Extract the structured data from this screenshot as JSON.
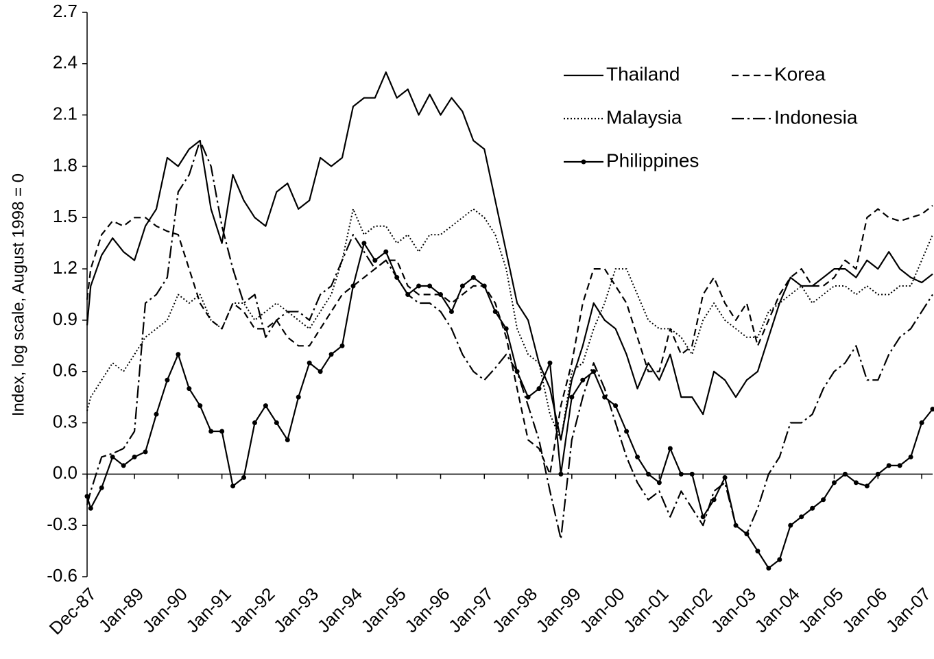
{
  "chart_data": {
    "type": "line",
    "y_label": "Index, log scale, August 1998 = 0",
    "x": [
      1987.917,
      1988,
      1988.25,
      1988.5,
      1988.75,
      1989,
      1989.25,
      1989.5,
      1989.75,
      1990,
      1990.25,
      1990.5,
      1990.75,
      1991,
      1991.25,
      1991.5,
      1991.75,
      1992,
      1992.25,
      1992.5,
      1992.75,
      1993,
      1993.25,
      1993.5,
      1993.75,
      1994,
      1994.25,
      1994.5,
      1994.75,
      1995,
      1995.25,
      1995.5,
      1995.75,
      1996,
      1996.25,
      1996.5,
      1996.75,
      1997,
      1997.25,
      1997.5,
      1997.75,
      1998,
      1998.25,
      1998.5,
      1998.75,
      1999,
      1999.25,
      1999.5,
      1999.75,
      2000,
      2000.25,
      2000.5,
      2000.75,
      2001,
      2001.25,
      2001.5,
      2001.75,
      2002,
      2002.25,
      2002.5,
      2002.75,
      2003,
      2003.25,
      2003.5,
      2003.75,
      2004,
      2004.25,
      2004.5,
      2004.75,
      2005,
      2005.25,
      2005.5,
      2005.75,
      2006,
      2006.25,
      2006.5,
      2006.75,
      2007,
      2007.25
    ],
    "xlim": [
      1987.917,
      2007.25
    ],
    "xticks": [
      {
        "value": 1987.917,
        "label": "Dec-87"
      },
      {
        "value": 1989,
        "label": "Jan-89"
      },
      {
        "value": 1990,
        "label": "Jan-90"
      },
      {
        "value": 1991,
        "label": "Jan-91"
      },
      {
        "value": 1992,
        "label": "Jan-92"
      },
      {
        "value": 1993,
        "label": "Jan-93"
      },
      {
        "value": 1994,
        "label": "Jan-94"
      },
      {
        "value": 1995,
        "label": "Jan-95"
      },
      {
        "value": 1996,
        "label": "Jan-96"
      },
      {
        "value": 1997,
        "label": "Jan-97"
      },
      {
        "value": 1998,
        "label": "Jan-98"
      },
      {
        "value": 1999,
        "label": "Jan-99"
      },
      {
        "value": 2000,
        "label": "Jan-00"
      },
      {
        "value": 2001,
        "label": "Jan-01"
      },
      {
        "value": 2002,
        "label": "Jan-02"
      },
      {
        "value": 2003,
        "label": "Jan-03"
      },
      {
        "value": 2004,
        "label": "Jan-04"
      },
      {
        "value": 2005,
        "label": "Jan-05"
      },
      {
        "value": 2006,
        "label": "Jan-06"
      },
      {
        "value": 2007,
        "label": "Jan-07"
      }
    ],
    "ylim": [
      -0.6,
      2.7
    ],
    "yticks": [
      {
        "value": -0.6,
        "label": "-0.6"
      },
      {
        "value": -0.3,
        "label": "-0.3"
      },
      {
        "value": 0,
        "label": "0.0"
      },
      {
        "value": 0.3,
        "label": "0.3"
      },
      {
        "value": 0.6,
        "label": "0.6"
      },
      {
        "value": 0.9,
        "label": "0.9"
      },
      {
        "value": 1.2,
        "label": "1.2"
      },
      {
        "value": 1.5,
        "label": "1.5"
      },
      {
        "value": 1.8,
        "label": "1.8"
      },
      {
        "value": 2.1,
        "label": "2.1"
      },
      {
        "value": 2.4,
        "label": "2.4"
      },
      {
        "value": 2.7,
        "label": "2.7"
      }
    ],
    "legend": "upper right",
    "series": [
      {
        "name": "Thailand",
        "color": "#000000",
        "dash": "solid",
        "values": [
          0.87,
          1.1,
          1.28,
          1.38,
          1.3,
          1.25,
          1.45,
          1.55,
          1.85,
          1.8,
          1.9,
          1.95,
          1.55,
          1.35,
          1.75,
          1.6,
          1.5,
          1.45,
          1.65,
          1.7,
          1.55,
          1.6,
          1.85,
          1.8,
          1.85,
          2.15,
          2.2,
          2.2,
          2.35,
          2.2,
          2.25,
          2.1,
          2.22,
          2.1,
          2.2,
          2.12,
          1.95,
          1.9,
          1.6,
          1.3,
          1.0,
          0.9,
          0.65,
          0.5,
          0.2,
          0.55,
          0.75,
          1.0,
          0.9,
          0.85,
          0.7,
          0.5,
          0.65,
          0.55,
          0.7,
          0.45,
          0.45,
          0.35,
          0.6,
          0.55,
          0.45,
          0.55,
          0.6,
          0.8,
          1.0,
          1.15,
          1.1,
          1.1,
          1.15,
          1.2,
          1.2,
          1.15,
          1.25,
          1.2,
          1.3,
          1.2,
          1.15,
          1.12,
          1.17
        ]
      },
      {
        "name": "Korea",
        "color": "#000000",
        "dash": "dashed",
        "values": [
          1.02,
          1.2,
          1.4,
          1.48,
          1.45,
          1.5,
          1.5,
          1.45,
          1.42,
          1.4,
          1.2,
          1.0,
          0.9,
          0.85,
          1.0,
          0.95,
          0.85,
          0.85,
          0.9,
          0.8,
          0.75,
          0.75,
          0.85,
          0.95,
          1.05,
          1.1,
          1.15,
          1.2,
          1.25,
          1.25,
          1.1,
          1.05,
          1.05,
          1.05,
          1.0,
          1.05,
          1.1,
          1.1,
          1.0,
          0.8,
          0.5,
          0.2,
          0.15,
          0.0,
          0.4,
          0.65,
          1.0,
          1.2,
          1.2,
          1.1,
          1.0,
          0.8,
          0.6,
          0.6,
          0.85,
          0.7,
          0.75,
          1.05,
          1.15,
          1.0,
          0.9,
          1.0,
          0.75,
          0.9,
          1.05,
          1.15,
          1.2,
          1.1,
          1.1,
          1.15,
          1.25,
          1.2,
          1.5,
          1.55,
          1.5,
          1.48,
          1.5,
          1.52,
          1.57
        ]
      },
      {
        "name": "Malaysia",
        "color": "#000000",
        "dash": "dotted",
        "values": [
          0.37,
          0.45,
          0.55,
          0.65,
          0.6,
          0.7,
          0.8,
          0.85,
          0.9,
          1.05,
          1.0,
          1.05,
          0.9,
          0.85,
          1.0,
          1.0,
          0.9,
          0.95,
          1.0,
          0.95,
          0.9,
          0.85,
          0.95,
          1.05,
          1.25,
          1.55,
          1.4,
          1.45,
          1.45,
          1.35,
          1.4,
          1.3,
          1.4,
          1.4,
          1.45,
          1.5,
          1.55,
          1.5,
          1.4,
          1.2,
          0.85,
          0.7,
          0.65,
          0.35,
          0.2,
          0.6,
          0.65,
          0.85,
          1.0,
          1.2,
          1.2,
          1.05,
          0.9,
          0.85,
          0.85,
          0.8,
          0.7,
          0.9,
          1.0,
          0.9,
          0.85,
          0.8,
          0.8,
          0.95,
          1.0,
          1.05,
          1.1,
          1.0,
          1.05,
          1.1,
          1.1,
          1.05,
          1.1,
          1.05,
          1.05,
          1.1,
          1.1,
          1.25,
          1.4
        ]
      },
      {
        "name": "Indonesia",
        "color": "#000000",
        "dash": "dashdot",
        "values": [
          -0.18,
          -0.1,
          0.1,
          0.12,
          0.15,
          0.25,
          1.0,
          1.05,
          1.15,
          1.65,
          1.75,
          1.95,
          1.8,
          1.45,
          1.2,
          1.0,
          1.05,
          0.8,
          0.9,
          0.95,
          0.95,
          0.9,
          1.05,
          1.1,
          1.25,
          1.4,
          1.3,
          1.2,
          1.25,
          1.15,
          1.05,
          1.0,
          1.0,
          0.95,
          0.85,
          0.7,
          0.6,
          0.55,
          0.62,
          0.7,
          0.6,
          0.4,
          0.2,
          -0.1,
          -0.38,
          0.2,
          0.45,
          0.65,
          0.5,
          0.3,
          0.1,
          -0.05,
          -0.15,
          -0.1,
          -0.25,
          -0.1,
          -0.2,
          -0.3,
          -0.1,
          -0.05,
          -0.3,
          -0.35,
          -0.2,
          0.0,
          0.1,
          0.3,
          0.3,
          0.35,
          0.5,
          0.6,
          0.65,
          0.75,
          0.55,
          0.55,
          0.7,
          0.8,
          0.85,
          0.95,
          1.05
        ]
      },
      {
        "name": "Philippines",
        "color": "#000000",
        "dash": "solid",
        "marker": "circle",
        "values": [
          -0.13,
          -0.2,
          -0.08,
          0.1,
          0.05,
          0.1,
          0.13,
          0.35,
          0.55,
          0.7,
          0.5,
          0.4,
          0.25,
          0.25,
          -0.07,
          -0.02,
          0.3,
          0.4,
          0.3,
          0.2,
          0.45,
          0.65,
          0.6,
          0.7,
          0.75,
          1.1,
          1.35,
          1.25,
          1.3,
          1.15,
          1.05,
          1.1,
          1.1,
          1.05,
          0.95,
          1.1,
          1.15,
          1.1,
          0.95,
          0.85,
          0.6,
          0.45,
          0.5,
          0.65,
          0.0,
          0.45,
          0.55,
          0.6,
          0.45,
          0.4,
          0.25,
          0.1,
          0.0,
          -0.05,
          0.15,
          0.0,
          0.0,
          -0.25,
          -0.15,
          -0.02,
          -0.3,
          -0.35,
          -0.45,
          -0.55,
          -0.5,
          -0.3,
          -0.25,
          -0.2,
          -0.15,
          -0.05,
          0.0,
          -0.05,
          -0.07,
          0.0,
          0.05,
          0.05,
          0.1,
          0.3,
          0.38
        ]
      }
    ]
  }
}
